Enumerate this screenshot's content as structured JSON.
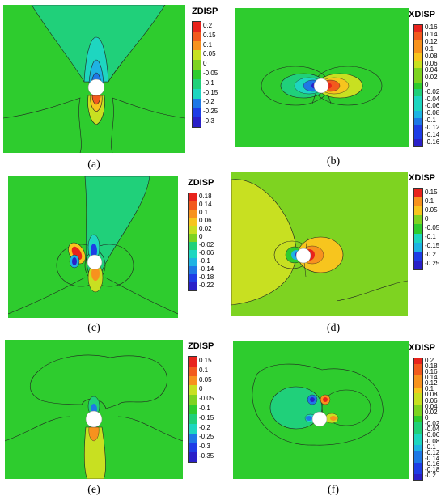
{
  "panels": [
    {
      "id": "a",
      "caption": "(a)",
      "legend_title": "ZDISP",
      "levels": [
        "0.2",
        "0.15",
        "0.1",
        "0.05",
        "0",
        "-0.05",
        "-0.1",
        "-0.15",
        "-0.2",
        "-0.25",
        "-0.3"
      ],
      "background_color": "#2ecc2e"
    },
    {
      "id": "b",
      "caption": "(b)",
      "legend_title": "XDISP",
      "levels": [
        "0.16",
        "0.14",
        "0.12",
        "0.1",
        "0.08",
        "0.06",
        "0.04",
        "0.02",
        "0",
        "-0.02",
        "-0.04",
        "-0.06",
        "-0.08",
        "-0.1",
        "-0.12",
        "-0.14",
        "-0.16"
      ],
      "background_color": "#2ecc2e"
    },
    {
      "id": "c",
      "caption": "(c)",
      "legend_title": "ZDISP",
      "levels": [
        "0.18",
        "0.14",
        "0.1",
        "0.06",
        "0.02",
        "0",
        "-0.02",
        "-0.06",
        "-0.1",
        "-0.14",
        "-0.18",
        "-0.22"
      ],
      "background_color": "#2ecc2e"
    },
    {
      "id": "d",
      "caption": "(d)",
      "legend_title": "XDISP",
      "levels": [
        "0.15",
        "0.1",
        "0.05",
        "0",
        "-0.05",
        "-0.1",
        "-0.15",
        "-0.2",
        "-0.25"
      ],
      "background_color": "#7ed321"
    },
    {
      "id": "e",
      "caption": "(e)",
      "legend_title": "ZDISP",
      "levels": [
        "0.15",
        "0.1",
        "0.05",
        "0",
        "-0.05",
        "-0.1",
        "-0.15",
        "-0.2",
        "-0.25",
        "-0.3",
        "-0.35"
      ],
      "background_color": "#2ecc2e"
    },
    {
      "id": "f",
      "caption": "(f)",
      "legend_title": "XDISP",
      "levels": [
        "0.2",
        "0.18",
        "0.16",
        "0.14",
        "0.12",
        "0.1",
        "0.08",
        "0.06",
        "0.04",
        "0.02",
        "0",
        "-0.02",
        "-0.04",
        "-0.06",
        "-0.08",
        "-0.1",
        "-0.12",
        "-0.14",
        "-0.16",
        "-0.18",
        "-0.2"
      ],
      "background_color": "#2ecc2e"
    }
  ],
  "colormap": [
    "#e8231c",
    "#f25a1d",
    "#f7921e",
    "#f7c51e",
    "#c8e021",
    "#7ed321",
    "#2ecc2e",
    "#20d07a",
    "#1ed6c0",
    "#1eb3e3",
    "#1e78e6",
    "#1e3de6",
    "#2a20c8"
  ]
}
